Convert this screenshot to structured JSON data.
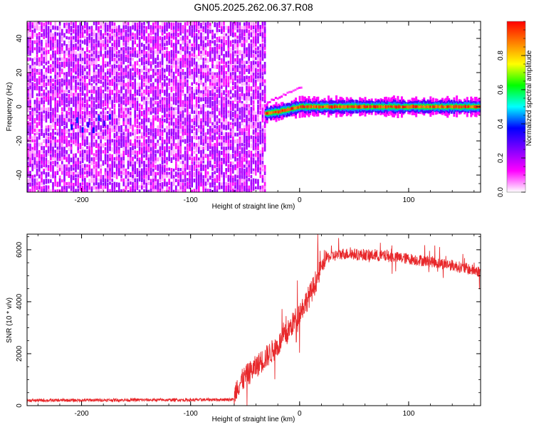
{
  "figure_title": "GN05.2025.262.06.37.R08",
  "chart_data": [
    {
      "type": "heatmap",
      "title": "GN05.2025.262.06.37.R08",
      "xlabel": "Height of straight line (km)",
      "ylabel": "Frequency (Hz)",
      "xlim": [
        -250,
        166
      ],
      "ylim": [
        -50,
        50
      ],
      "xticks": [
        -200,
        -100,
        0,
        100
      ],
      "yticks": [
        -40,
        -20,
        0,
        20,
        40
      ],
      "colorbar": {
        "label": "Normalized spectral amplitude",
        "range": [
          0,
          1
        ],
        "ticks": [
          0.0,
          0.2,
          0.4,
          0.6,
          0.8
        ],
        "tick_labels": [
          "0.0",
          "0.2",
          "0.4",
          "0.6",
          "0.8"
        ],
        "colormap": [
          "#ffffff",
          "#ff00ff",
          "#8000ff",
          "#0000ff",
          "#00ffff",
          "#00ff00",
          "#ffff00",
          "#ff8000",
          "#ff0000"
        ]
      },
      "regions": [
        {
          "name": "noise",
          "x_range": [
            -250,
            -32
          ],
          "freq_range": [
            -50,
            50
          ],
          "amplitude": [
            0.02,
            0.25
          ]
        },
        {
          "name": "carrier",
          "x_range": [
            -32,
            166
          ],
          "freq_points": [
            [
              -32,
              -4
            ],
            [
              -20,
              -3
            ],
            [
              -10,
              -1.5
            ],
            [
              0,
              0
            ],
            [
              166,
              0
            ]
          ],
          "amplitude": [
            0.6,
            1.0
          ]
        },
        {
          "name": "spur",
          "x": -190,
          "freq_range": [
            -15,
            -5
          ],
          "amplitude": 0.3
        }
      ]
    },
    {
      "type": "line",
      "xlabel": "Height of straight line (km)",
      "ylabel": "SNR (10 * v/v)",
      "xlim": [
        -250,
        166
      ],
      "ylim": [
        0,
        6600
      ],
      "xticks": [
        -200,
        -100,
        0,
        100
      ],
      "yticks": [
        0,
        2000,
        4000,
        6000
      ],
      "color": "#e8282b",
      "series": [
        {
          "name": "SNR",
          "x": [
            -250,
            -200,
            -150,
            -100,
            -60,
            -58,
            -50,
            -40,
            -30,
            -20,
            -10,
            0,
            10,
            20,
            25,
            40,
            60,
            80,
            100,
            120,
            140,
            160,
            166
          ],
          "values": [
            200,
            210,
            220,
            220,
            240,
            700,
            1100,
            1500,
            1900,
            2300,
            2900,
            3600,
            4300,
            5300,
            5700,
            5850,
            5800,
            5750,
            5650,
            5550,
            5400,
            5200,
            5150
          ]
        }
      ]
    }
  ]
}
